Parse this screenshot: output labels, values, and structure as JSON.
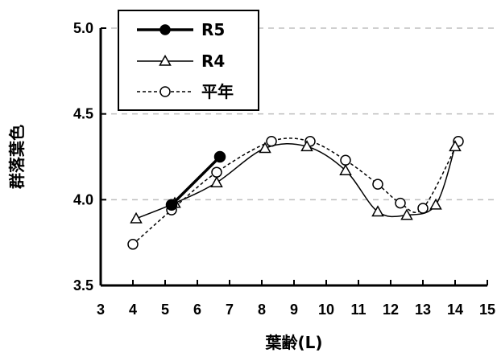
{
  "chart_data": {
    "type": "line",
    "xlabel": "葉齢(L)",
    "ylabel": "群落葉色",
    "xlim": [
      3,
      15
    ],
    "ylim": [
      3.5,
      5.0
    ],
    "x_ticks": [
      "3",
      "4",
      "5",
      "6",
      "7",
      "8",
      "9",
      "10",
      "11",
      "12",
      "13",
      "14",
      "15"
    ],
    "y_ticks": [
      "3.5",
      "4.0",
      "4.5",
      "5.0"
    ],
    "grid": "horizontal dashed",
    "legend_position": "top-left",
    "series": [
      {
        "name": "R5",
        "style": "solid-thick",
        "marker": "filled-circle",
        "color": "#000000",
        "points": [
          [
            5.2,
            3.97
          ],
          [
            6.7,
            4.25
          ]
        ]
      },
      {
        "name": "R4",
        "style": "solid",
        "marker": "open-triangle",
        "color": "#000000",
        "points": [
          [
            4.1,
            3.89
          ],
          [
            5.3,
            3.98
          ],
          [
            6.6,
            4.1
          ],
          [
            8.1,
            4.3
          ],
          [
            9.4,
            4.31
          ],
          [
            10.6,
            4.17
          ],
          [
            11.6,
            3.93
          ],
          [
            12.5,
            3.91
          ],
          [
            13.4,
            3.97
          ],
          [
            14.0,
            4.31
          ]
        ]
      },
      {
        "name": "平年",
        "style": "dashed",
        "marker": "open-circle",
        "color": "#000000",
        "points": [
          [
            4.0,
            3.74
          ],
          [
            5.2,
            3.94
          ],
          [
            6.6,
            4.16
          ],
          [
            8.3,
            4.34
          ],
          [
            9.5,
            4.34
          ],
          [
            10.6,
            4.23
          ],
          [
            11.6,
            4.09
          ],
          [
            12.3,
            3.98
          ],
          [
            13.0,
            3.95
          ],
          [
            14.1,
            4.34
          ]
        ]
      }
    ]
  }
}
